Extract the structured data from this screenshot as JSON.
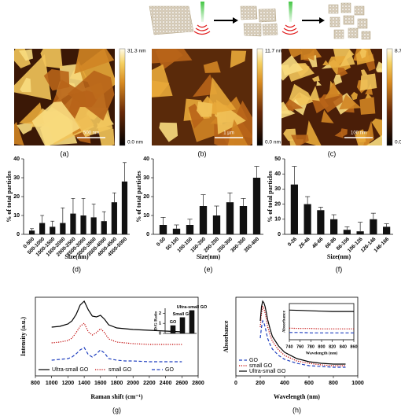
{
  "images": [
    {
      "max": "31.3 nm",
      "min": "0.0 nm",
      "scale": "500 nm",
      "label": "(a)"
    },
    {
      "max": "11.7 nm",
      "min": "0.0 nm",
      "scale": "1 µm",
      "label": "(b)"
    },
    {
      "max": "8.7 nm",
      "min": "0.0 nm",
      "scale": "100 nm",
      "label": "(c)"
    }
  ],
  "chart_data": [
    {
      "type": "bar",
      "label": "(d)",
      "xlabel": "Size(nm)",
      "ylabel": "% of total particles",
      "categories": [
        "0-500",
        "500-1000",
        "1000-1500",
        "1500-2000",
        "2000-2500",
        "2500-3000",
        "3000-3500",
        "3500-4000",
        "4000-4500",
        "4500-5000"
      ],
      "values": [
        2,
        6,
        4,
        6,
        11,
        10,
        9,
        7,
        17,
        28
      ],
      "errors": [
        1,
        4,
        3,
        8,
        8,
        9,
        7,
        5,
        5,
        10
      ],
      "color": "#111111",
      "ylim": [
        0,
        40
      ],
      "yticks": [
        0,
        10,
        20,
        30,
        40
      ]
    },
    {
      "type": "bar",
      "label": "(e)",
      "xlabel": "Size(nm)",
      "ylabel": "% of total particles",
      "categories": [
        "0-50",
        "50-100",
        "100-150",
        "150-200",
        "200-250",
        "250-300",
        "300-350",
        "350-400"
      ],
      "values": [
        5,
        3,
        5,
        15,
        10,
        17,
        15,
        30
      ],
      "errors": [
        4,
        2,
        3,
        6,
        5,
        5,
        4,
        6
      ],
      "color": "#111111",
      "ylim": [
        0,
        40
      ],
      "yticks": [
        0,
        10,
        20,
        30,
        40
      ]
    },
    {
      "type": "bar",
      "label": "(f)",
      "xlabel": "Size(nm)",
      "ylabel": "% of total particles",
      "categories": [
        "0-26",
        "26-46",
        "46-66",
        "66-86",
        "86-106",
        "106-126",
        "126-146",
        "146-166"
      ],
      "values": [
        33,
        20,
        16,
        10,
        3,
        2,
        10,
        5
      ],
      "errors": [
        12,
        5,
        2,
        3,
        2,
        6,
        4,
        2
      ],
      "color": "#111111",
      "ylim": [
        0,
        50
      ],
      "yticks": [
        0,
        10,
        20,
        30,
        40,
        50
      ]
    },
    {
      "type": "line",
      "label": "(g)",
      "xlabel": "Raman shift (cm⁻¹)",
      "ylabel": "Intensity (a.u.)",
      "x": [
        1000,
        1100,
        1200,
        1250,
        1300,
        1350,
        1400,
        1450,
        1500,
        1550,
        1600,
        1650,
        1700,
        1800,
        1900,
        2000,
        2200,
        2400,
        2600
      ],
      "xlim": [
        800,
        2800
      ],
      "xticks": [
        800,
        1000,
        1200,
        1400,
        1600,
        1800,
        2000,
        2200,
        2400,
        2600,
        2800
      ],
      "ylim": [
        0,
        100
      ],
      "legend": "bottom",
      "series": [
        {
          "name": "Ultra-small GO",
          "color": "#000000",
          "dash": "solid",
          "values": [
            62,
            63,
            66,
            70,
            78,
            90,
            95,
            84,
            76,
            75,
            77,
            72,
            65,
            61,
            60,
            59,
            58,
            57,
            56
          ]
        },
        {
          "name": "small GO",
          "color": "#c00000",
          "dash": "dotted",
          "values": [
            42,
            43,
            45,
            48,
            55,
            63,
            67,
            56,
            52,
            55,
            60,
            55,
            47,
            43,
            42,
            41,
            40,
            40,
            40
          ]
        },
        {
          "name": "GO",
          "color": "#1f3fbf",
          "dash": "dashed",
          "values": [
            20,
            21,
            22,
            24,
            28,
            33,
            36,
            27,
            24,
            28,
            33,
            29,
            22,
            20,
            19,
            19,
            18,
            18,
            18
          ]
        }
      ],
      "inset": {
        "type": "bar",
        "ylabel": "D/G Ratio",
        "categories": [
          "GO",
          "Small GO",
          "Ultra-small GO"
        ],
        "values": [
          0.8,
          1.6,
          2.3
        ],
        "color": "#111111",
        "ylim": [
          0,
          2.5
        ],
        "yticks": [
          0,
          1,
          2
        ]
      }
    },
    {
      "type": "line",
      "label": "(h)",
      "xlabel": "Wavelength (nm)",
      "ylabel": "Absorbance",
      "x": [
        200,
        210,
        220,
        230,
        240,
        250,
        260,
        280,
        300,
        350,
        400,
        500,
        600,
        700,
        800,
        900
      ],
      "xlim": [
        0,
        1000
      ],
      "xticks": [
        0,
        200,
        400,
        600,
        800,
        1000
      ],
      "ylim": [
        0,
        100
      ],
      "legend": "lower left",
      "series": [
        {
          "name": "GO",
          "color": "#1f3fbf",
          "dash": "dashed",
          "values": [
            48,
            62,
            70,
            68,
            62,
            55,
            48,
            40,
            34,
            26,
            21,
            16,
            13,
            12,
            11,
            11
          ]
        },
        {
          "name": "small GO",
          "color": "#c00000",
          "dash": "dotted",
          "values": [
            62,
            80,
            88,
            86,
            80,
            72,
            63,
            52,
            44,
            33,
            26,
            19,
            16,
            14,
            13,
            13
          ]
        },
        {
          "name": "Ultra-small GO",
          "color": "#000000",
          "dash": "solid",
          "values": [
            70,
            88,
            95,
            93,
            88,
            80,
            72,
            60,
            50,
            38,
            30,
            22,
            18,
            16,
            15,
            15
          ]
        }
      ],
      "inset": {
        "type": "line",
        "xlabel": "Wavelength (nm)",
        "ylabel": "Absorbance",
        "x": [
          740,
          760,
          780,
          800,
          820,
          840,
          860
        ],
        "xlim": [
          740,
          860
        ],
        "xticks": [
          740,
          760,
          780,
          800,
          820,
          840,
          860
        ],
        "ylim": [
          0,
          1
        ],
        "series": [
          {
            "color": "#000000",
            "dash": "solid",
            "values": [
              0.82,
              0.81,
              0.8,
              0.79,
              0.78,
              0.78,
              0.78
            ]
          },
          {
            "color": "#c00000",
            "dash": "dotted",
            "values": [
              0.32,
              0.31,
              0.31,
              0.3,
              0.3,
              0.3,
              0.3
            ]
          },
          {
            "color": "#1f3fbf",
            "dash": "dashed",
            "values": [
              0.2,
              0.2,
              0.19,
              0.19,
              0.19,
              0.19,
              0.19
            ]
          }
        ]
      }
    }
  ]
}
